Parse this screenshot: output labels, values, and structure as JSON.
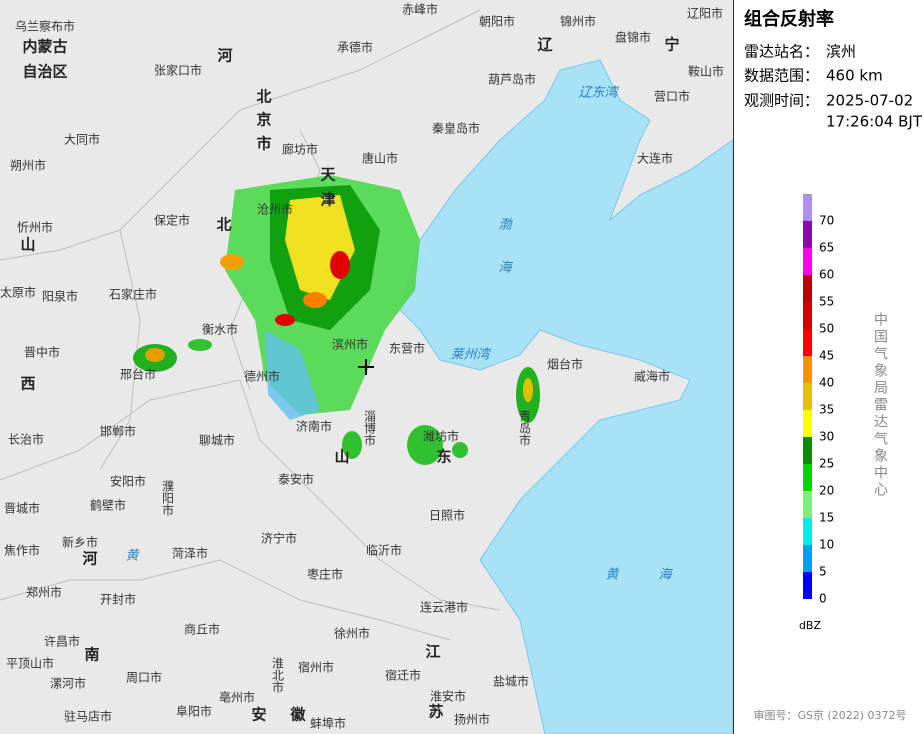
{
  "map": {
    "labels": [
      "赤峰市",
      "朝阳市",
      "锦州市",
      "辽阳市",
      "乌兰察布市",
      "内蒙古",
      "自治区",
      "承德市",
      "盘锦市",
      "辽",
      "宁",
      "张家口市",
      "河",
      "葫芦岛市",
      "鞍山市",
      "营口市",
      "辽东湾",
      "北",
      "京",
      "市",
      "大同市",
      "秦皇岛市",
      "廊坊市",
      "朔州市",
      "唐山市",
      "大连市",
      "天",
      "津",
      "忻州市",
      "保定市",
      "北",
      "沧州市",
      "渤",
      "海",
      "山",
      "太原市",
      "阳泉市",
      "石家庄市",
      "衡水市",
      "滨州市",
      "东营市",
      "莱州湾",
      "烟台市",
      "晋中市",
      "邢台市",
      "德州市",
      "威海市",
      "西",
      "淄博市",
      "潍坊市",
      "青岛市",
      "长治市",
      "邯郸市",
      "济南市",
      "聊城市",
      "山",
      "东",
      "安阳市",
      "泰安市",
      "濮阳市",
      "晋城市",
      "鹤壁市",
      "日照市",
      "新乡市",
      "焦作市",
      "济宁市",
      "河",
      "菏泽市",
      "临沂市",
      "黄",
      "黄",
      "海",
      "枣庄市",
      "郑州市",
      "开封市",
      "连云港市",
      "商丘市",
      "徐州市",
      "许昌市",
      "南",
      "江",
      "平顶山市",
      "漯河市",
      "周口市",
      "淮北市",
      "宿州市",
      "宿迁市",
      "盐城市",
      "亳州市",
      "阜阳市",
      "驻马店市",
      "安",
      "徽",
      "淮安市",
      "苏",
      "蚌埠市",
      "扬州市"
    ]
  },
  "panel": {
    "title": "组合反射率",
    "station_label": "雷达站名：",
    "station": "滨州",
    "range_label": "数据范围：",
    "range": "460 km",
    "time_label": "观测时间：",
    "date": "2025-07-02",
    "time": "17:26:04 BJT",
    "org": "中国气象局雷达气象中心",
    "approval": "审图号：GS京 (2022) 0372号"
  },
  "legend": {
    "values": [
      0,
      5,
      10,
      15,
      20,
      25,
      30,
      35,
      40,
      45,
      50,
      55,
      60,
      65,
      70
    ],
    "colors": [
      "#0000f6",
      "#01a0f6",
      "#00ecec",
      "#7cf07c",
      "#00d800",
      "#019000",
      "#ffff00",
      "#e7c000",
      "#ff9000",
      "#ff0000",
      "#d60000",
      "#c00000",
      "#ff00f0",
      "#9600b4",
      "#ad90f0"
    ],
    "unit": "dBZ"
  }
}
